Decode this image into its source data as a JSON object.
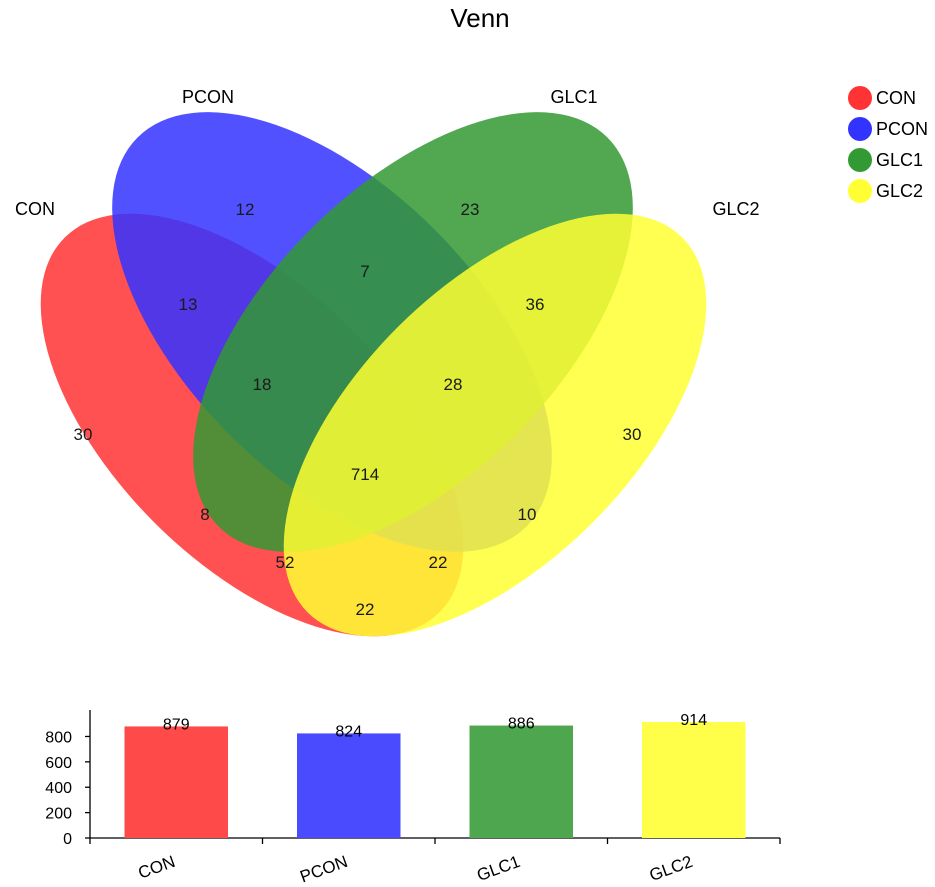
{
  "chart_data": [
    {
      "type": "venn",
      "title": "Venn",
      "sets": [
        {
          "name": "CON",
          "color": "#ff3333"
        },
        {
          "name": "PCON",
          "color": "#3333ff"
        },
        {
          "name": "GLC1",
          "color": "#339933"
        },
        {
          "name": "GLC2",
          "color": "#ffff33"
        }
      ],
      "legend": {
        "placement": "top-right",
        "entries": [
          "CON",
          "PCON",
          "GLC1",
          "GLC2"
        ]
      },
      "regions": [
        {
          "sets": [
            "CON"
          ],
          "value": 30
        },
        {
          "sets": [
            "PCON"
          ],
          "value": 12
        },
        {
          "sets": [
            "GLC1"
          ],
          "value": 23
        },
        {
          "sets": [
            "GLC2"
          ],
          "value": 30
        },
        {
          "sets": [
            "CON",
            "PCON"
          ],
          "value": 13
        },
        {
          "sets": [
            "PCON",
            "GLC1"
          ],
          "value": 7
        },
        {
          "sets": [
            "GLC1",
            "GLC2"
          ],
          "value": 36
        },
        {
          "sets": [
            "CON",
            "GLC1"
          ],
          "value": 8
        },
        {
          "sets": [
            "PCON",
            "GLC2"
          ],
          "value": 10
        },
        {
          "sets": [
            "CON",
            "GLC2"
          ],
          "value": 22
        },
        {
          "sets": [
            "CON",
            "PCON",
            "GLC1"
          ],
          "value": 18
        },
        {
          "sets": [
            "PCON",
            "GLC1",
            "GLC2"
          ],
          "value": 28
        },
        {
          "sets": [
            "CON",
            "GLC1",
            "GLC2"
          ],
          "value": 52
        },
        {
          "sets": [
            "CON",
            "PCON",
            "GLC2"
          ],
          "value": 22
        },
        {
          "sets": [
            "CON",
            "PCON",
            "GLC1",
            "GLC2"
          ],
          "value": 714
        }
      ]
    },
    {
      "type": "bar",
      "categories": [
        "CON",
        "PCON",
        "GLC1",
        "GLC2"
      ],
      "values": [
        879,
        824,
        886,
        914
      ],
      "colors": [
        "#ff4a4a",
        "#4a4aff",
        "#4ea64e",
        "#ffff4a"
      ],
      "ylim": [
        0,
        914
      ],
      "yticks": [
        0,
        200,
        400,
        600,
        800
      ],
      "data_labels": true,
      "grid": false
    }
  ]
}
